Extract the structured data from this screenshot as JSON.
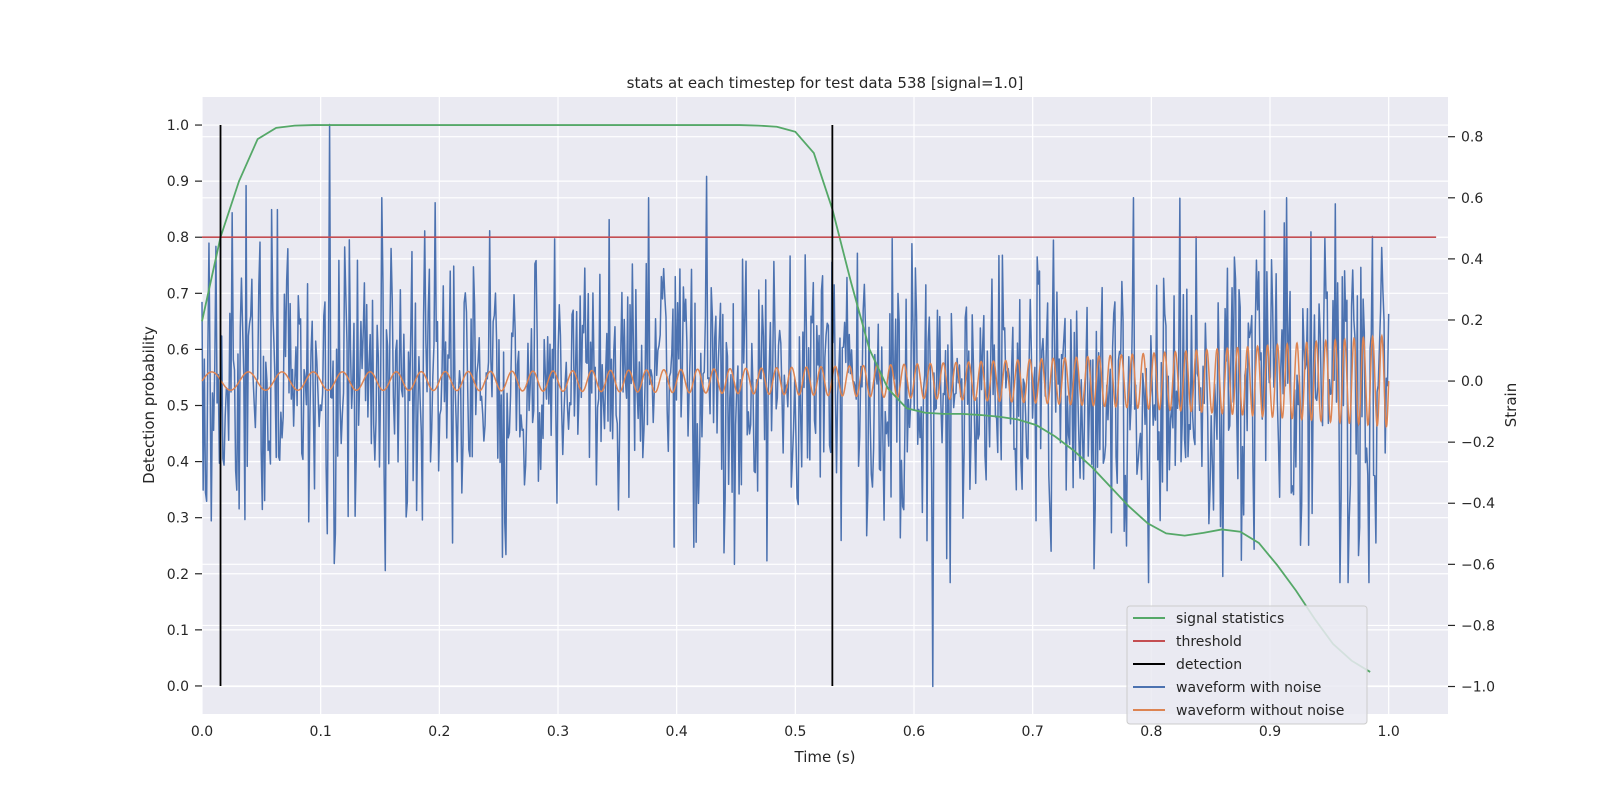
{
  "chart_data": {
    "type": "line",
    "title": "stats at each timestep for test data 538 [signal=1.0]",
    "xlabel": "Time (s)",
    "ylabel": "Detection probability",
    "y2label": "Strain",
    "xlim": [
      0.0,
      1.05
    ],
    "ylim": [
      -0.05,
      1.05
    ],
    "y2lim": [
      -1.09,
      0.93
    ],
    "xticks": [
      "0.0",
      "0.1",
      "0.2",
      "0.3",
      "0.4",
      "0.5",
      "0.6",
      "0.7",
      "0.8",
      "0.9",
      "1.0"
    ],
    "yticks": [
      "0.0",
      "0.1",
      "0.2",
      "0.3",
      "0.4",
      "0.5",
      "0.6",
      "0.7",
      "0.8",
      "0.9",
      "1.0"
    ],
    "y2ticks": [
      "−1.0",
      "−0.8",
      "−0.6",
      "−0.4",
      "−0.2",
      "0.0",
      "0.2",
      "0.4",
      "0.6",
      "0.8"
    ],
    "grid": true,
    "legend_position": "bottom-right",
    "colors": {
      "background": "#eaeaf2",
      "signal_statistics": "#55a868",
      "threshold": "#c44e52",
      "detection": "#000000",
      "waveform_with_noise": "#4c72b0",
      "waveform_without_noise": "#dd8452"
    },
    "series": [
      {
        "name": "signal statistics",
        "axis": "left",
        "x": [
          0.0,
          0.0156,
          0.0312,
          0.0469,
          0.0625,
          0.0781,
          0.0938,
          0.1094,
          0.125,
          0.25,
          0.375,
          0.4531,
          0.4688,
          0.4844,
          0.5,
          0.5156,
          0.5312,
          0.5469,
          0.5625,
          0.5781,
          0.5938,
          0.6094,
          0.625,
          0.6406,
          0.6562,
          0.6719,
          0.6875,
          0.7031,
          0.7188,
          0.7344,
          0.75,
          0.7656,
          0.7812,
          0.7969,
          0.8125,
          0.8281,
          0.8438,
          0.8594,
          0.875,
          0.8906,
          0.9062,
          0.9219,
          0.9375,
          0.9531,
          0.9688,
          0.9844
        ],
        "values": [
          0.65,
          0.8,
          0.9,
          0.975,
          0.995,
          0.999,
          1.0,
          1.0,
          1.0,
          1.0,
          1.0,
          1.0,
          0.999,
          0.997,
          0.988,
          0.95,
          0.85,
          0.72,
          0.6,
          0.53,
          0.495,
          0.487,
          0.485,
          0.485,
          0.483,
          0.48,
          0.475,
          0.465,
          0.445,
          0.42,
          0.39,
          0.355,
          0.32,
          0.29,
          0.272,
          0.268,
          0.273,
          0.279,
          0.275,
          0.255,
          0.215,
          0.17,
          0.12,
          0.075,
          0.045,
          0.025
        ]
      },
      {
        "name": "threshold",
        "axis": "left",
        "x": [
          0.0,
          1.04
        ],
        "values": [
          0.8,
          0.8
        ]
      },
      {
        "name": "detection",
        "axis": "left",
        "x_positions": [
          0.0156,
          0.5312
        ],
        "range": [
          0.0,
          1.0
        ]
      },
      {
        "name": "waveform with noise",
        "axis": "right",
        "x_range": [
          0.0,
          1.0
        ],
        "samples": 1024,
        "approx_min": -1.0,
        "approx_max": 0.84,
        "notable_points": [
          {
            "x": 0.108,
            "y": 0.84
          },
          {
            "x": 0.037,
            "y": 0.64
          },
          {
            "x": 0.425,
            "y": 0.67
          },
          {
            "x": 0.955,
            "y": 0.58
          },
          {
            "x": 0.616,
            "y": -1.0
          },
          {
            "x": 0.449,
            "y": -0.6
          },
          {
            "x": 0.86,
            "y": -0.64
          },
          {
            "x": 0.989,
            "y": -0.53
          },
          {
            "x": 1.0,
            "y": 0.22
          }
        ]
      },
      {
        "name": "waveform without noise",
        "axis": "right",
        "x_range": [
          0.0,
          1.0
        ],
        "description": "chirp: amplitude rises from about 0.03 to 0.15, frequency rises from about 30 Hz to 130 Hz",
        "start_amplitude": 0.03,
        "end_amplitude": 0.15,
        "start_frequency_hz": 30,
        "end_frequency_hz": 130
      }
    ],
    "legend": [
      "signal statistics",
      "threshold",
      "detection",
      "waveform with noise",
      "waveform without noise"
    ]
  }
}
